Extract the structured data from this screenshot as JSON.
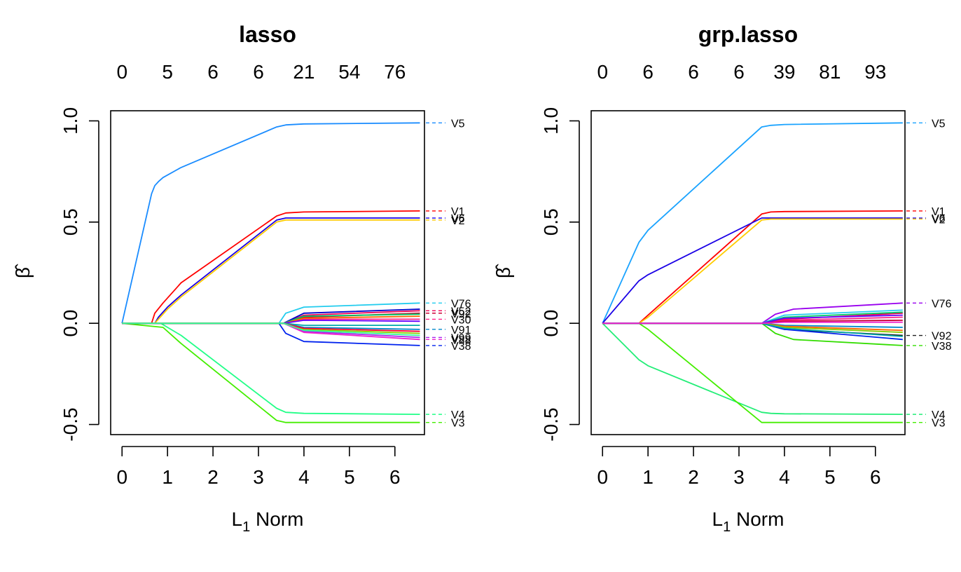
{
  "chart_data": [
    {
      "type": "line",
      "title": "lasso",
      "xlabel": "L",
      "xlabel_sub": "1",
      "xlabel_suffix": " Norm",
      "ylabel": "β̂",
      "xlim": [
        -0.25,
        6.65
      ],
      "ylim": [
        -0.55,
        1.05
      ],
      "x_ticks": [
        "0",
        "1",
        "2",
        "3",
        "4",
        "5",
        "6"
      ],
      "y_ticks": [
        "-0.5",
        "0.0",
        "0.5",
        "1.0"
      ],
      "top_axis": {
        "at": [
          0,
          1,
          2,
          3,
          4,
          5,
          6
        ],
        "labels": [
          "0",
          "5",
          "6",
          "6",
          "21",
          "54",
          "76"
        ]
      },
      "grid": false,
      "series": [
        {
          "name": "V5",
          "color": "#1a8cff",
          "x": [
            0,
            0.65,
            0.72,
            0.8,
            0.9,
            1.3,
            3.4,
            3.6,
            4.0,
            6.55
          ],
          "y": [
            0,
            0.64,
            0.68,
            0.7,
            0.72,
            0.77,
            0.97,
            0.98,
            0.985,
            0.99
          ]
        },
        {
          "name": "V1",
          "color": "#ff0000",
          "x": [
            0,
            0.65,
            0.72,
            0.9,
            1.3,
            3.4,
            3.6,
            4.0,
            6.55
          ],
          "y": [
            0,
            0,
            0.05,
            0.1,
            0.2,
            0.53,
            0.545,
            0.55,
            0.555
          ]
        },
        {
          "name": "V6",
          "color": "#1a00e6",
          "x": [
            0,
            0.72,
            0.8,
            1.0,
            1.3,
            3.4,
            3.6,
            4.0,
            6.55
          ],
          "y": [
            0,
            0,
            0.03,
            0.08,
            0.14,
            0.51,
            0.52,
            0.52,
            0.52
          ]
        },
        {
          "name": "V2",
          "color": "#ffcc00",
          "x": [
            0,
            0.72,
            0.8,
            1.0,
            1.3,
            3.4,
            3.6,
            4.0,
            6.55
          ],
          "y": [
            0,
            0,
            0.02,
            0.07,
            0.13,
            0.5,
            0.51,
            0.51,
            0.51
          ]
        },
        {
          "name": "V4",
          "color": "#22ff88",
          "x": [
            0,
            0.85,
            1.3,
            3.4,
            3.6,
            4.0,
            6.55
          ],
          "y": [
            0,
            0,
            -0.06,
            -0.42,
            -0.44,
            -0.445,
            -0.45
          ]
        },
        {
          "name": "V3",
          "color": "#44ee00",
          "x": [
            0,
            0.9,
            1.3,
            3.4,
            3.6,
            4.0,
            6.55
          ],
          "y": [
            0,
            -0.02,
            -0.1,
            -0.48,
            -0.49,
            -0.49,
            -0.49
          ]
        },
        {
          "name": "V76",
          "color": "#22ccee",
          "x": [
            0,
            3.45,
            3.6,
            4.0,
            6.55
          ],
          "y": [
            0,
            0,
            0.05,
            0.08,
            0.1
          ]
        },
        {
          "name": "V38",
          "color": "#0022ee",
          "x": [
            0,
            3.45,
            3.6,
            4.0,
            6.55
          ],
          "y": [
            0,
            0,
            -0.05,
            -0.09,
            -0.11
          ]
        },
        {
          "name": "V52",
          "color": "#ee0055",
          "x": [
            0,
            3.55,
            4.0,
            6.55
          ],
          "y": [
            0,
            0,
            0.04,
            0.062
          ]
        },
        {
          "name": "V92",
          "color": "#cc0033",
          "x": [
            0,
            3.55,
            4.0,
            6.55
          ],
          "y": [
            0,
            0,
            0.03,
            0.05
          ]
        },
        {
          "name": "V30",
          "color": "#ff2288",
          "x": [
            0,
            3.55,
            4.0,
            6.55
          ],
          "y": [
            0,
            0,
            0.02,
            0.02
          ]
        },
        {
          "name": "V91",
          "color": "#0088cc",
          "x": [
            0,
            3.55,
            4.0,
            6.55
          ],
          "y": [
            0,
            0,
            -0.02,
            -0.03
          ]
        },
        {
          "name": "V99",
          "color": "#aa22ee",
          "x": [
            0,
            3.55,
            4.0,
            6.55
          ],
          "y": [
            0,
            0,
            -0.04,
            -0.07
          ]
        },
        {
          "name": "V88",
          "color": "#ee22cc",
          "x": [
            0,
            3.55,
            4.0,
            6.55
          ],
          "y": [
            0,
            0,
            -0.045,
            -0.08
          ]
        },
        {
          "name": "",
          "color": "#0000cc",
          "x": [
            0,
            3.55,
            4.0,
            6.55
          ],
          "y": [
            0,
            0,
            0.05,
            0.07
          ]
        },
        {
          "name": "",
          "color": "#00cc66",
          "x": [
            0,
            3.55,
            4.0,
            6.55
          ],
          "y": [
            0,
            0,
            0.035,
            0.045
          ]
        },
        {
          "name": "",
          "color": "#ff6600",
          "x": [
            0,
            3.55,
            4.0,
            6.55
          ],
          "y": [
            0,
            0,
            0.025,
            0.035
          ]
        },
        {
          "name": "",
          "color": "#6600ff",
          "x": [
            0,
            3.55,
            4.0,
            6.55
          ],
          "y": [
            0,
            0,
            0.015,
            0.01
          ]
        },
        {
          "name": "",
          "color": "#00aaaa",
          "x": [
            0,
            3.55,
            4.0,
            6.55
          ],
          "y": [
            0,
            0,
            -0.01,
            -0.01
          ]
        },
        {
          "name": "",
          "color": "#88cc00",
          "x": [
            0,
            3.55,
            4.0,
            6.55
          ],
          "y": [
            0,
            0,
            -0.03,
            -0.05
          ]
        },
        {
          "name": "",
          "color": "#ff0033",
          "x": [
            0,
            3.55,
            4.0,
            6.55
          ],
          "y": [
            0,
            0,
            -0.025,
            -0.04
          ]
        },
        {
          "name": "",
          "color": "#33ff99",
          "x": [
            0,
            3.55,
            4.0,
            6.55
          ],
          "y": [
            0,
            0,
            -0.035,
            -0.06
          ]
        }
      ]
    },
    {
      "type": "line",
      "title": "grp.lasso",
      "xlabel": "L",
      "xlabel_sub": "1",
      "xlabel_suffix": " Norm",
      "ylabel": "β̂",
      "xlim": [
        -0.25,
        6.65
      ],
      "ylim": [
        -0.55,
        1.05
      ],
      "x_ticks": [
        "0",
        "1",
        "2",
        "3",
        "4",
        "5",
        "6"
      ],
      "y_ticks": [
        "-0.5",
        "0.0",
        "0.5",
        "1.0"
      ],
      "top_axis": {
        "at": [
          0,
          1,
          2,
          3,
          4,
          5,
          6
        ],
        "labels": [
          "0",
          "6",
          "6",
          "6",
          "39",
          "81",
          "93"
        ]
      },
      "grid": false,
      "series": [
        {
          "name": "V5",
          "color": "#1aa3ff",
          "x": [
            0,
            0.8,
            1.0,
            3.5,
            3.7,
            4.0,
            6.6
          ],
          "y": [
            0,
            0.4,
            0.46,
            0.97,
            0.978,
            0.982,
            0.99
          ]
        },
        {
          "name": "V1",
          "color": "#ff0000",
          "x": [
            0,
            0.8,
            1.0,
            3.5,
            3.7,
            4.0,
            6.6
          ],
          "y": [
            0,
            0,
            0.04,
            0.54,
            0.55,
            0.552,
            0.555
          ]
        },
        {
          "name": "V6",
          "color": "#1a00e6",
          "x": [
            0,
            0.8,
            1.0,
            3.5,
            3.7,
            4.0,
            6.6
          ],
          "y": [
            0,
            0.21,
            0.24,
            0.52,
            0.52,
            0.52,
            0.52
          ]
        },
        {
          "name": "V2",
          "color": "#ffcc00",
          "x": [
            0,
            0.8,
            1.0,
            3.5,
            3.7,
            4.0,
            6.6
          ],
          "y": [
            0,
            0,
            0.03,
            0.51,
            0.515,
            0.515,
            0.515
          ]
        },
        {
          "name": "V4",
          "color": "#22ee77",
          "x": [
            0,
            0.8,
            1.0,
            3.5,
            3.7,
            4.0,
            6.6
          ],
          "y": [
            0,
            -0.18,
            -0.21,
            -0.44,
            -0.445,
            -0.447,
            -0.45
          ]
        },
        {
          "name": "V3",
          "color": "#44ee00",
          "x": [
            0,
            0.8,
            1.0,
            3.5,
            3.7,
            4.0,
            6.6
          ],
          "y": [
            0,
            0,
            -0.03,
            -0.49,
            -0.49,
            -0.49,
            -0.49
          ]
        },
        {
          "name": "V76",
          "color": "#9900ee",
          "x": [
            0,
            3.5,
            3.8,
            4.2,
            6.6
          ],
          "y": [
            0,
            0,
            0.045,
            0.07,
            0.1
          ]
        },
        {
          "name": "V38",
          "color": "#33dd00",
          "x": [
            0,
            3.5,
            3.8,
            4.2,
            6.6
          ],
          "y": [
            0,
            0,
            -0.05,
            -0.08,
            -0.11
          ]
        },
        {
          "name": "V92",
          "color": "#222222",
          "x": [
            0,
            3.5,
            4.0,
            6.6
          ],
          "y": [
            0,
            0,
            -0.03,
            -0.06
          ]
        },
        {
          "name": "",
          "color": "#22ccee",
          "x": [
            0,
            3.5,
            4.0,
            6.6
          ],
          "y": [
            0,
            0,
            0.04,
            0.065
          ]
        },
        {
          "name": "",
          "color": "#ee0055",
          "x": [
            0,
            3.5,
            4.0,
            6.6
          ],
          "y": [
            0,
            0,
            0.02,
            0.05
          ]
        },
        {
          "name": "",
          "color": "#ff2288",
          "x": [
            0,
            3.5,
            4.0,
            6.6
          ],
          "y": [
            0,
            0,
            0.015,
            0.03
          ]
        },
        {
          "name": "",
          "color": "#cc0033",
          "x": [
            0,
            3.5,
            4.0,
            6.6
          ],
          "y": [
            0,
            0,
            0.01,
            0.015
          ]
        },
        {
          "name": "",
          "color": "#0088cc",
          "x": [
            0,
            3.5,
            4.0,
            6.6
          ],
          "y": [
            0,
            0,
            -0.01,
            -0.02
          ]
        },
        {
          "name": "",
          "color": "#0022ee",
          "x": [
            0,
            3.5,
            4.0,
            6.6
          ],
          "y": [
            0,
            0,
            -0.03,
            -0.08
          ]
        },
        {
          "name": "",
          "color": "#00cc66",
          "x": [
            0,
            3.5,
            4.0,
            6.6
          ],
          "y": [
            0,
            0,
            0.03,
            0.055
          ]
        },
        {
          "name": "",
          "color": "#ff6600",
          "x": [
            0,
            3.5,
            4.0,
            6.6
          ],
          "y": [
            0,
            0,
            -0.015,
            -0.035
          ]
        },
        {
          "name": "",
          "color": "#88cc00",
          "x": [
            0,
            3.5,
            4.0,
            6.6
          ],
          "y": [
            0,
            0,
            -0.02,
            -0.045
          ]
        },
        {
          "name": "",
          "color": "#6600ff",
          "x": [
            0,
            3.5,
            4.0,
            6.6
          ],
          "y": [
            0,
            0,
            0.025,
            0.04
          ]
        },
        {
          "name": "",
          "color": "#00aaaa",
          "x": [
            0,
            3.5,
            4.0,
            6.6
          ],
          "y": [
            0,
            0,
            -0.025,
            -0.065
          ]
        },
        {
          "name": "",
          "color": "#ee22cc",
          "x": [
            0,
            3.5,
            4.0,
            6.6
          ],
          "y": [
            0,
            0,
            0.005,
            0.005
          ]
        }
      ]
    }
  ]
}
